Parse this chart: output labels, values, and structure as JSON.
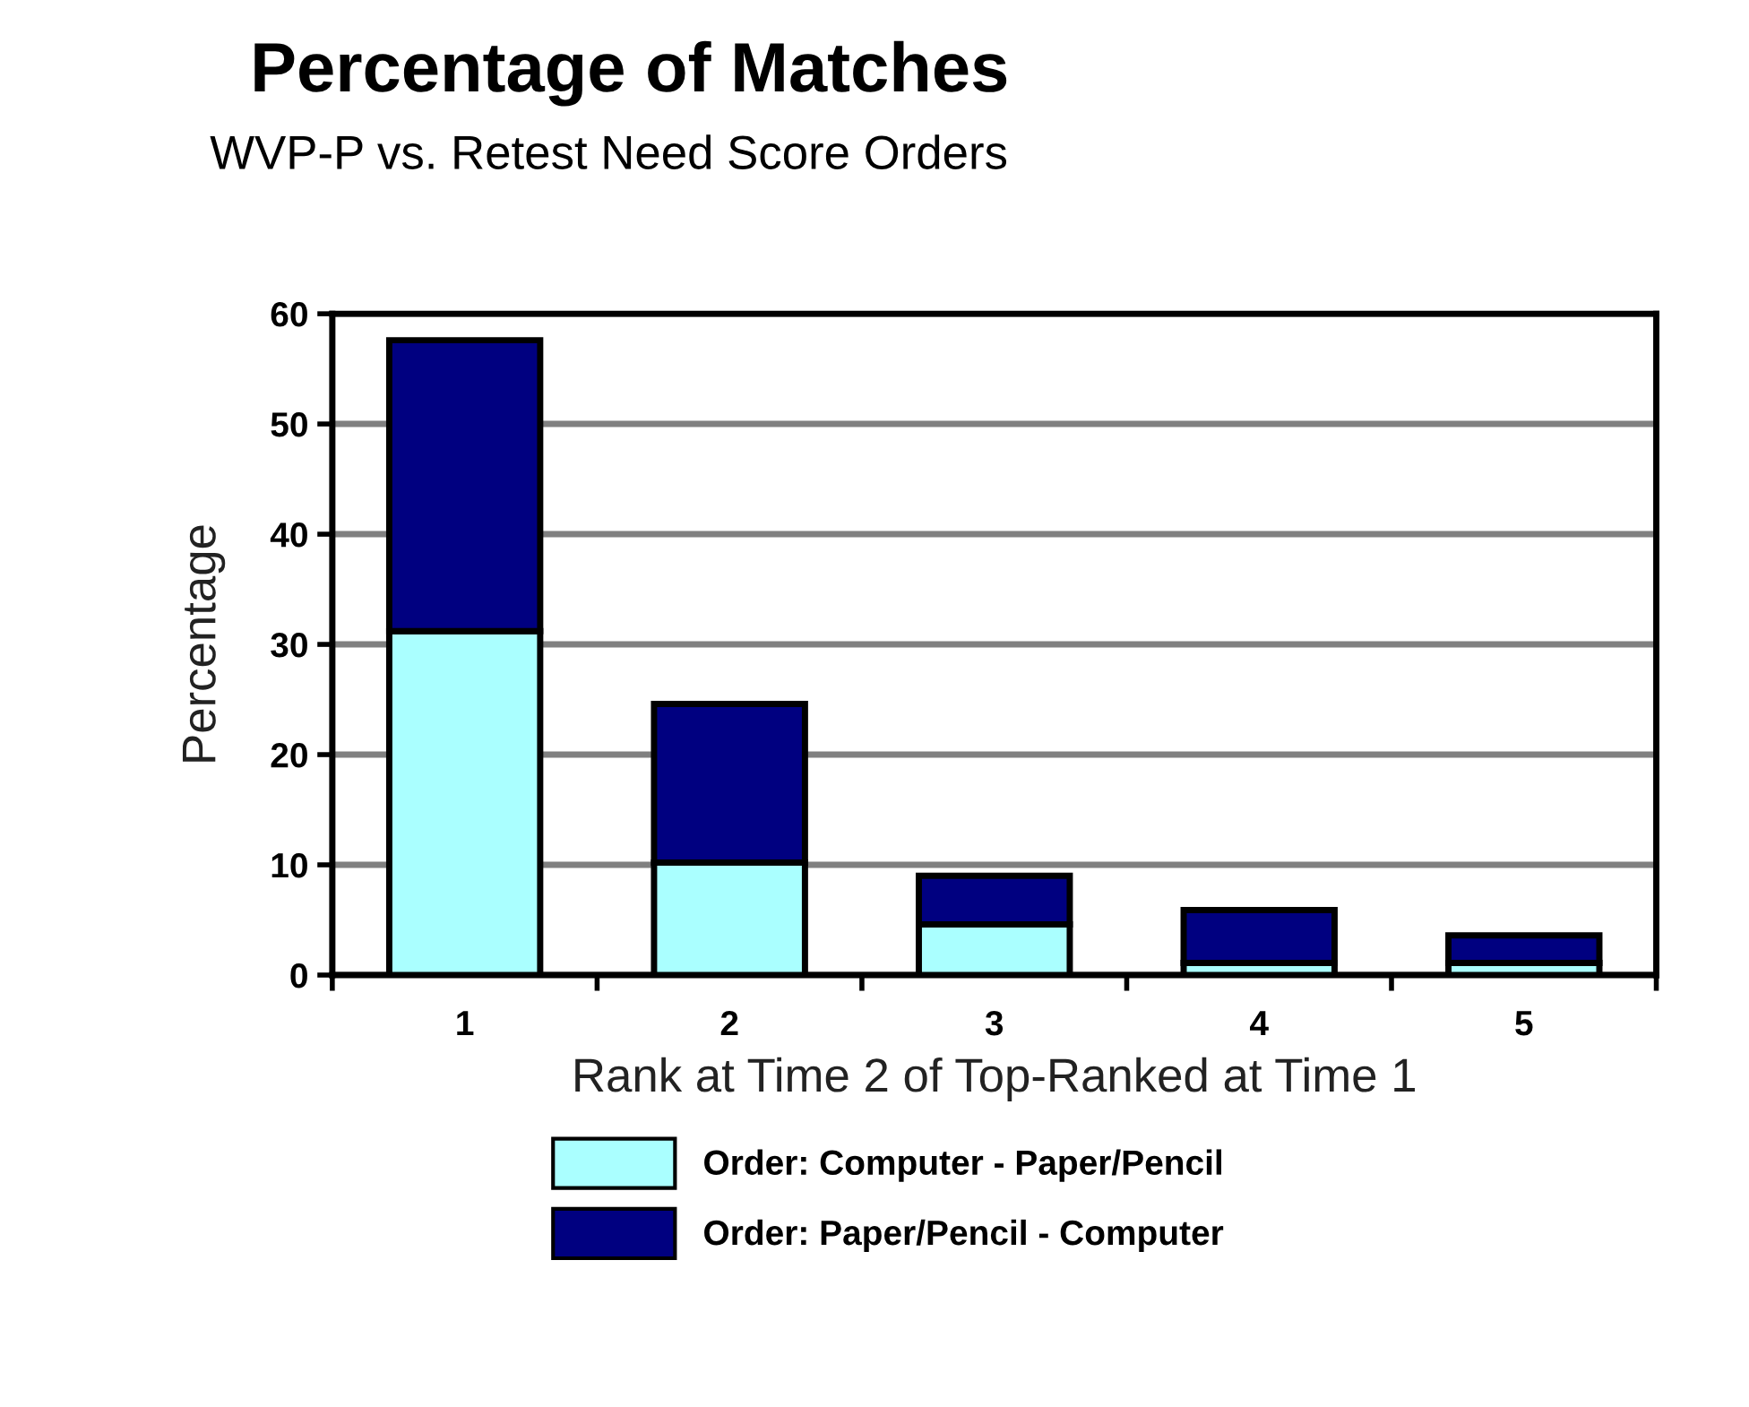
{
  "chart_data": {
    "type": "bar",
    "title": "Percentage of Matches",
    "subtitle": "WVP-P vs. Retest Need Score Orders",
    "xlabel": "Rank at Time 2 of Top-Ranked at Time 1",
    "ylabel": "Percentage",
    "categories": [
      "1",
      "2",
      "3",
      "4",
      "5"
    ],
    "series": [
      {
        "name": "Order: Computer - Paper/Pencil",
        "color": "#aaffff",
        "values": [
          31.2,
          10.2,
          4.6,
          1.1,
          1.1
        ]
      },
      {
        "name": "Order: Paper/Pencil - Computer",
        "color": "#000080",
        "values": [
          26.4,
          14.4,
          4.4,
          4.8,
          2.5
        ]
      }
    ],
    "stacked": true,
    "ylim": [
      0,
      60
    ],
    "yticks": [
      0,
      10,
      20,
      30,
      40,
      50,
      60
    ],
    "grid": "y",
    "legend": "bottom"
  }
}
